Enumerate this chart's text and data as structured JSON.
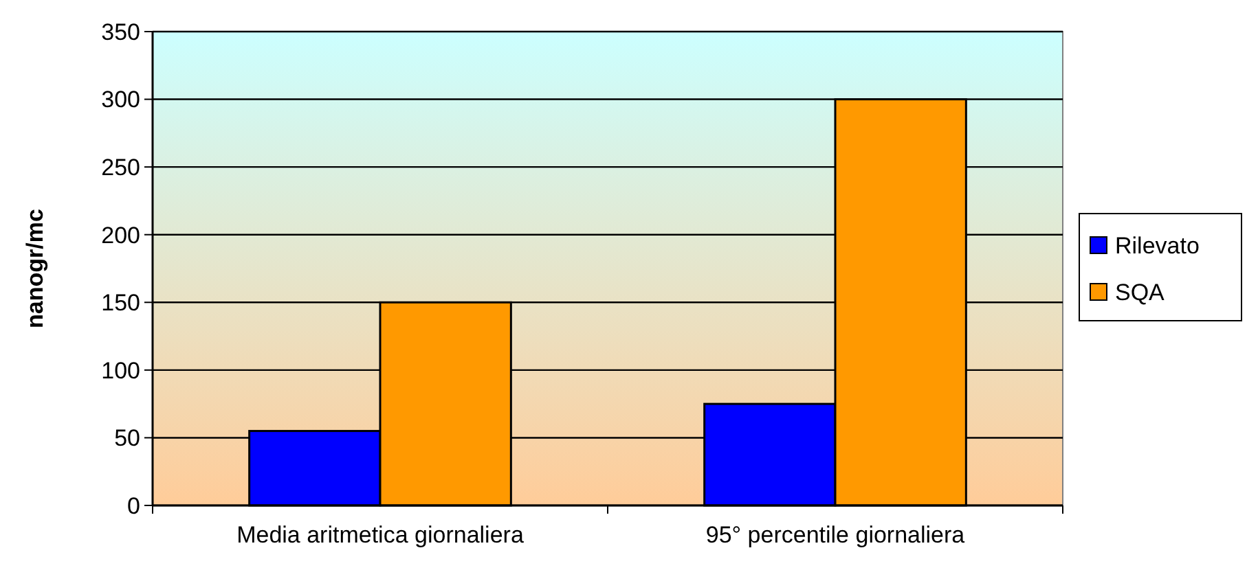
{
  "chart_data": {
    "type": "bar",
    "ylabel": "nanogr/mc",
    "categories": [
      "Media aritmetica giornaliera",
      "95° percentile giornaliera"
    ],
    "series": [
      {
        "name": "Rilevato",
        "color": "#0000ff",
        "values": [
          55,
          75
        ]
      },
      {
        "name": "SQA",
        "color": "#ff9900",
        "values": [
          150,
          300
        ]
      }
    ],
    "ylim": [
      0,
      350
    ],
    "yticks": [
      0,
      50,
      100,
      150,
      200,
      250,
      300,
      350
    ],
    "grid": "y",
    "legend": "right"
  }
}
